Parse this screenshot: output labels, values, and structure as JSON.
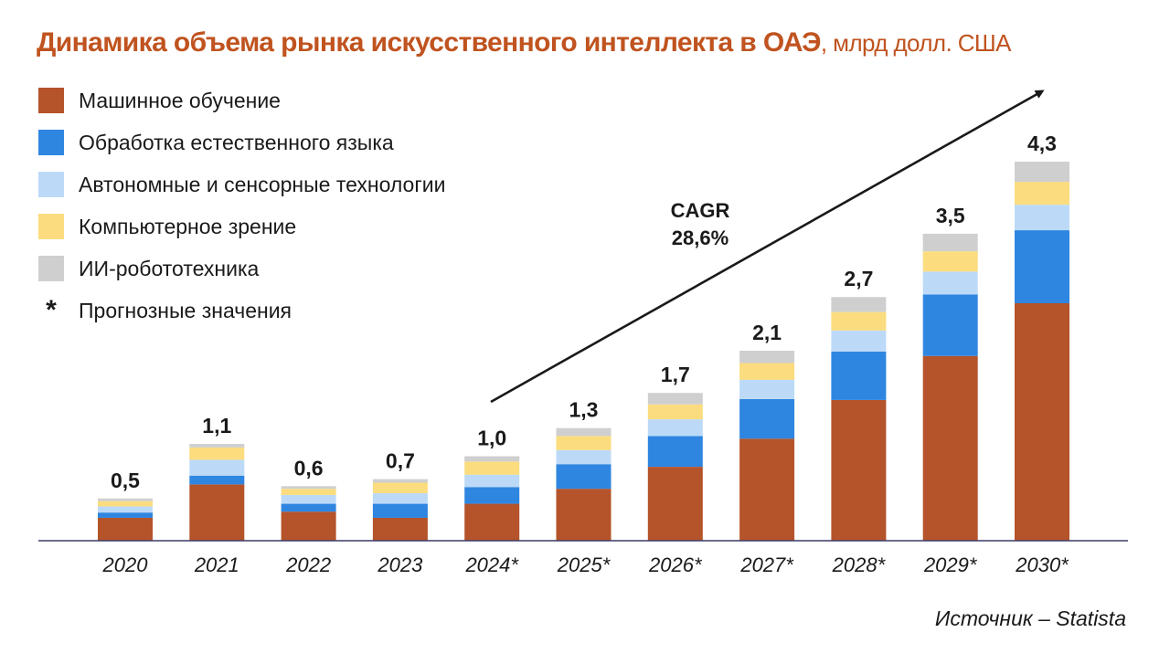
{
  "title": {
    "main": "Динамика объема рынка искусственного интеллекта в ОАЭ",
    "unit": ", млрд долл. США"
  },
  "legend": [
    {
      "label": "Машинное обучение",
      "color": "#b5532a"
    },
    {
      "label": "Обработка естественного языка",
      "color": "#2f86e0"
    },
    {
      "label": "Автономные и сенсорные технологии",
      "color": "#bcdaf8"
    },
    {
      "label": "Компьютерное зрение",
      "color": "#fbdc7e"
    },
    {
      "label": "ИИ-робототехника",
      "color": "#cfcfcf"
    }
  ],
  "forecast_note": {
    "symbol": "*",
    "label": "Прогнозные значения"
  },
  "cagr": {
    "label": "CAGR",
    "value": "28,6%"
  },
  "source": "Источник – Statista",
  "chart_data": {
    "type": "bar",
    "stacked": true,
    "categories": [
      "2020",
      "2021",
      "2022",
      "2023",
      "2024*",
      "2025*",
      "2026*",
      "2027*",
      "2028*",
      "2029*",
      "2030*"
    ],
    "totals_labels": [
      "0,5",
      "1,1",
      "0,6",
      "0,7",
      "1,0",
      "1,3",
      "1,7",
      "2,1",
      "2,7",
      "3,5",
      "4,3"
    ],
    "series": [
      {
        "name": "Машинное обучение",
        "color": "#b5532a",
        "values": [
          0.26,
          0.64,
          0.33,
          0.26,
          0.42,
          0.59,
          0.84,
          1.16,
          1.6,
          2.1,
          2.7
        ]
      },
      {
        "name": "Обработка естественного языка",
        "color": "#2f86e0",
        "values": [
          0.06,
          0.1,
          0.09,
          0.16,
          0.19,
          0.28,
          0.35,
          0.45,
          0.55,
          0.7,
          0.83
        ]
      },
      {
        "name": "Автономные и сенсорные технологии",
        "color": "#bcdaf8",
        "values": [
          0.07,
          0.18,
          0.1,
          0.12,
          0.14,
          0.16,
          0.19,
          0.22,
          0.24,
          0.26,
          0.29
        ]
      },
      {
        "name": "Компьютерное зрение",
        "color": "#fbdc7e",
        "values": [
          0.06,
          0.14,
          0.07,
          0.12,
          0.15,
          0.16,
          0.17,
          0.19,
          0.21,
          0.23,
          0.26
        ]
      },
      {
        "name": "ИИ-робототехника",
        "color": "#cfcfcf",
        "values": [
          0.03,
          0.04,
          0.03,
          0.04,
          0.06,
          0.09,
          0.13,
          0.14,
          0.17,
          0.2,
          0.23
        ]
      }
    ],
    "ylim": [
      0,
      4.3
    ],
    "grid": false,
    "legend_position": "top-left",
    "trend_arrow": true
  }
}
